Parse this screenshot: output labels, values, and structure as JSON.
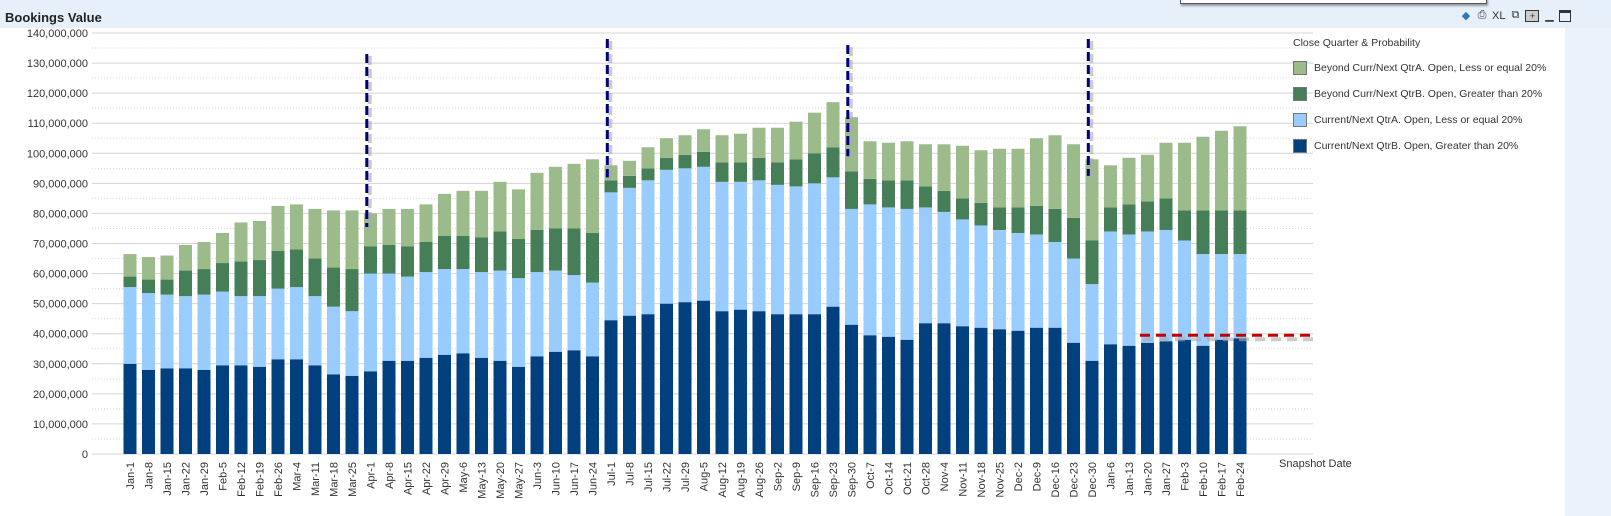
{
  "window": {
    "title": "Bookings Value",
    "toolbar_icons": [
      "send-to-excel-icon",
      "print-icon",
      "xl-export-icon",
      "copy-icon",
      "maximize-toggle-icon",
      "minimize-icon",
      "restore-icon"
    ],
    "toolbar_xl": "XL"
  },
  "chart_data": {
    "type": "bar",
    "stacked": true,
    "title": "Bookings Value",
    "xlabel": "Snapshot Date",
    "ylabel": "",
    "ylim": [
      0,
      140000000
    ],
    "yticks": [
      "0",
      "10,000,000",
      "20,000,000",
      "30,000,000",
      "40,000,000",
      "50,000,000",
      "60,000,000",
      "70,000,000",
      "80,000,000",
      "90,000,000",
      "100,000,000",
      "110,000,000",
      "120,000,000",
      "130,000,000",
      "140,000,000"
    ],
    "grid": true,
    "legend_placement": "right",
    "legend_title": "Close Quarter & Probability",
    "categories": [
      "Jan-1",
      "Jan-8",
      "Jan-15",
      "Jan-22",
      "Jan-29",
      "Feb-5",
      "Feb-12",
      "Feb-19",
      "Feb-26",
      "Mar-4",
      "Mar-11",
      "Mar-18",
      "Mar-25",
      "Apr-1",
      "Apr-8",
      "Apr-15",
      "Apr-22",
      "Apr-29",
      "May-6",
      "May-13",
      "May-20",
      "May-27",
      "Jun-3",
      "Jun-10",
      "Jun-17",
      "Jun-24",
      "Jul-1",
      "Jul-8",
      "Jul-15",
      "Jul-22",
      "Jul-29",
      "Aug-5",
      "Aug-12",
      "Aug-19",
      "Aug-26",
      "Sep-2",
      "Sep-9",
      "Sep-16",
      "Sep-23",
      "Sep-30",
      "Oct-7",
      "Oct-14",
      "Oct-21",
      "Oct-28",
      "Nov-4",
      "Nov-11",
      "Nov-18",
      "Nov-25",
      "Dec-2",
      "Dec-9",
      "Dec-16",
      "Dec-23",
      "Dec-30",
      "Jan-6",
      "Jan-13",
      "Jan-20",
      "Jan-27",
      "Feb-3",
      "Feb-10",
      "Feb-17",
      "Feb-24"
    ],
    "series": [
      {
        "name": "Current/Next QtrB. Open, Greater than 20%",
        "color": "#00407f",
        "values": [
          30000000,
          28000000,
          28500000,
          28500000,
          28000000,
          29500000,
          29500000,
          29000000,
          31500000,
          31500000,
          29500000,
          26500000,
          26000000,
          27500000,
          31000000,
          31000000,
          32000000,
          33000000,
          33500000,
          32000000,
          31000000,
          29000000,
          32500000,
          34000000,
          34500000,
          32500000,
          44500000,
          46000000,
          46500000,
          50000000,
          50500000,
          51000000,
          47500000,
          48000000,
          47500000,
          46500000,
          46500000,
          46500000,
          49000000,
          43000000,
          39500000,
          39000000,
          38000000,
          43500000,
          43500000,
          42500000,
          42000000,
          41500000,
          41000000,
          42000000,
          42000000,
          37000000,
          31000000,
          36500000,
          36000000,
          37000000,
          37500000,
          38000000,
          36000000,
          38000000,
          38500000
        ]
      },
      {
        "name": "Current/Next QtrA. Open, Less or equal 20%",
        "color": "#99ccff",
        "values": [
          25500000,
          25500000,
          24500000,
          24000000,
          25000000,
          24500000,
          23000000,
          23500000,
          23500000,
          24000000,
          23000000,
          22500000,
          21500000,
          32500000,
          29000000,
          28000000,
          28500000,
          28500000,
          28000000,
          28500000,
          30000000,
          29500000,
          28000000,
          27000000,
          25000000,
          24500000,
          42500000,
          42500000,
          44500000,
          44500000,
          44500000,
          44500000,
          43000000,
          42500000,
          43500000,
          43000000,
          42500000,
          43500000,
          43000000,
          38500000,
          43500000,
          43000000,
          43500000,
          38500000,
          37000000,
          35500000,
          34000000,
          33000000,
          32500000,
          31000000,
          28500000,
          28000000,
          25500000,
          37500000,
          37000000,
          37000000,
          37000000,
          33000000,
          30500000,
          28500000,
          28000000
        ]
      },
      {
        "name": "Beyond Curr/Next QtrB. Open, Greater than 20%",
        "color": "#467f57",
        "values": [
          3500000,
          4500000,
          5000000,
          8500000,
          8500000,
          9500000,
          11500000,
          12000000,
          12500000,
          12500000,
          12500000,
          13000000,
          14000000,
          9000000,
          9500000,
          10000000,
          10000000,
          11000000,
          11000000,
          11500000,
          13000000,
          13000000,
          14000000,
          14000000,
          15500000,
          16500000,
          4000000,
          4000000,
          4000000,
          4000000,
          4500000,
          5000000,
          6500000,
          6500000,
          7500000,
          7500000,
          9000000,
          10000000,
          10000000,
          12500000,
          8500000,
          9000000,
          9500000,
          7000000,
          7000000,
          7000000,
          7500000,
          7500000,
          8500000,
          9500000,
          11000000,
          13500000,
          14500000,
          8000000,
          10000000,
          10000000,
          10500000,
          10000000,
          14500000,
          14500000,
          14500000
        ]
      },
      {
        "name": "Beyond Curr/Next QtrA. Open, Less or equal 20%",
        "color": "#9bbb8b",
        "values": [
          7500000,
          7500000,
          8000000,
          8500000,
          9000000,
          10000000,
          13000000,
          13000000,
          15000000,
          15000000,
          16500000,
          19000000,
          19500000,
          11000000,
          12000000,
          12500000,
          12500000,
          14000000,
          15000000,
          15500000,
          16500000,
          16500000,
          19000000,
          20500000,
          21500000,
          24500000,
          5000000,
          5000000,
          7000000,
          6500000,
          6500000,
          7500000,
          9000000,
          9500000,
          10000000,
          11500000,
          12500000,
          13500000,
          15000000,
          18000000,
          12500000,
          12500000,
          13000000,
          14000000,
          15500000,
          17500000,
          17500000,
          19500000,
          19500000,
          22500000,
          24500000,
          24500000,
          27000000,
          14000000,
          15500000,
          15500000,
          18500000,
          22500000,
          24500000,
          26500000,
          28000000
        ]
      }
    ],
    "legend_order": [
      3,
      2,
      1,
      0
    ],
    "annotations": {
      "quarter_markers_color": "#000080",
      "reference_line_color": "#c00000",
      "reference_line_value": 39500000
    }
  }
}
